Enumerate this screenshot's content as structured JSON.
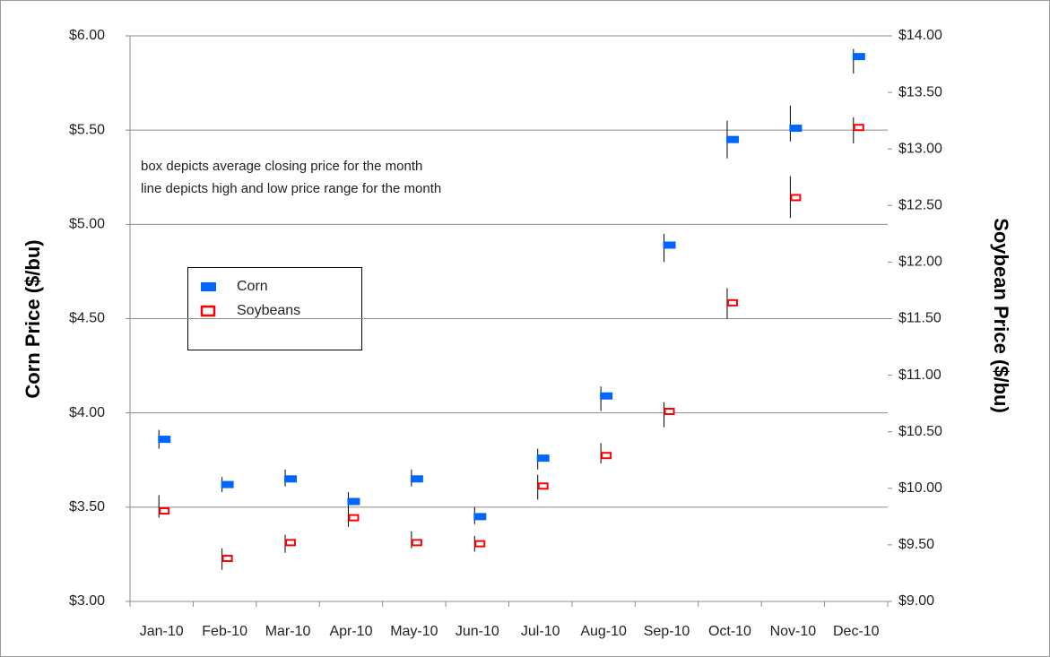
{
  "chart_data": {
    "type": "hilo",
    "y_label": "Corn Price ($/bu)",
    "y2_label": "Soybean Price ($/bu)",
    "annotations": [
      "box depicts average closing price for the month",
      "line depicts high and low price range for the month"
    ],
    "categories": [
      "Jan-10",
      "Feb-10",
      "Mar-10",
      "Apr-10",
      "May-10",
      "Jun-10",
      "Jul-10",
      "Aug-10",
      "Sep-10",
      "Oct-10",
      "Nov-10",
      "Dec-10"
    ],
    "series": [
      {
        "name": "Corn",
        "color": "#0066ff",
        "axis": "y",
        "values": [
          3.86,
          3.62,
          3.65,
          3.53,
          3.65,
          3.45,
          3.76,
          4.09,
          4.89,
          5.45,
          5.51,
          5.89
        ],
        "high": [
          3.91,
          3.66,
          3.7,
          3.58,
          3.7,
          3.5,
          3.81,
          4.14,
          4.95,
          5.55,
          5.63,
          5.93
        ],
        "low": [
          3.81,
          3.58,
          3.61,
          3.49,
          3.61,
          3.41,
          3.7,
          4.01,
          4.8,
          5.35,
          5.44,
          5.8
        ]
      },
      {
        "name": "Soybeans",
        "color": "#ff0000",
        "axis": "y2",
        "values": [
          9.8,
          9.38,
          9.52,
          9.74,
          9.52,
          9.51,
          10.02,
          10.29,
          10.68,
          11.64,
          12.57,
          13.19
        ],
        "high": [
          9.94,
          9.47,
          9.59,
          9.84,
          9.62,
          9.58,
          10.12,
          10.4,
          10.76,
          11.77,
          12.76,
          13.28
        ],
        "low": [
          9.74,
          9.28,
          9.43,
          9.66,
          9.47,
          9.44,
          9.9,
          10.22,
          10.54,
          11.5,
          12.39,
          13.05
        ]
      }
    ],
    "ylim": [
      3,
      6
    ],
    "yticks": [
      {
        "value": 3,
        "label": "$3.00"
      },
      {
        "value": 3.5,
        "label": "$3.50"
      },
      {
        "value": 4,
        "label": "$4.00"
      },
      {
        "value": 4.5,
        "label": "$4.50"
      },
      {
        "value": 5,
        "label": "$5.00"
      },
      {
        "value": 5.5,
        "label": "$5.50"
      },
      {
        "value": 6,
        "label": "$6.00"
      }
    ],
    "y2lim": [
      9,
      14
    ],
    "y2ticks": [
      {
        "value": 9,
        "label": "$9.00"
      },
      {
        "value": 9.5,
        "label": "$9.50"
      },
      {
        "value": 10,
        "label": "$10.00"
      },
      {
        "value": 10.5,
        "label": "$10.50"
      },
      {
        "value": 11,
        "label": "$11.00"
      },
      {
        "value": 11.5,
        "label": "$11.50"
      },
      {
        "value": 12,
        "label": "$12.00"
      },
      {
        "value": 12.5,
        "label": "$12.50"
      },
      {
        "value": 13,
        "label": "$13.00"
      },
      {
        "value": 13.5,
        "label": "$13.50"
      },
      {
        "value": 14,
        "label": "$14.00"
      }
    ],
    "grid": true
  }
}
